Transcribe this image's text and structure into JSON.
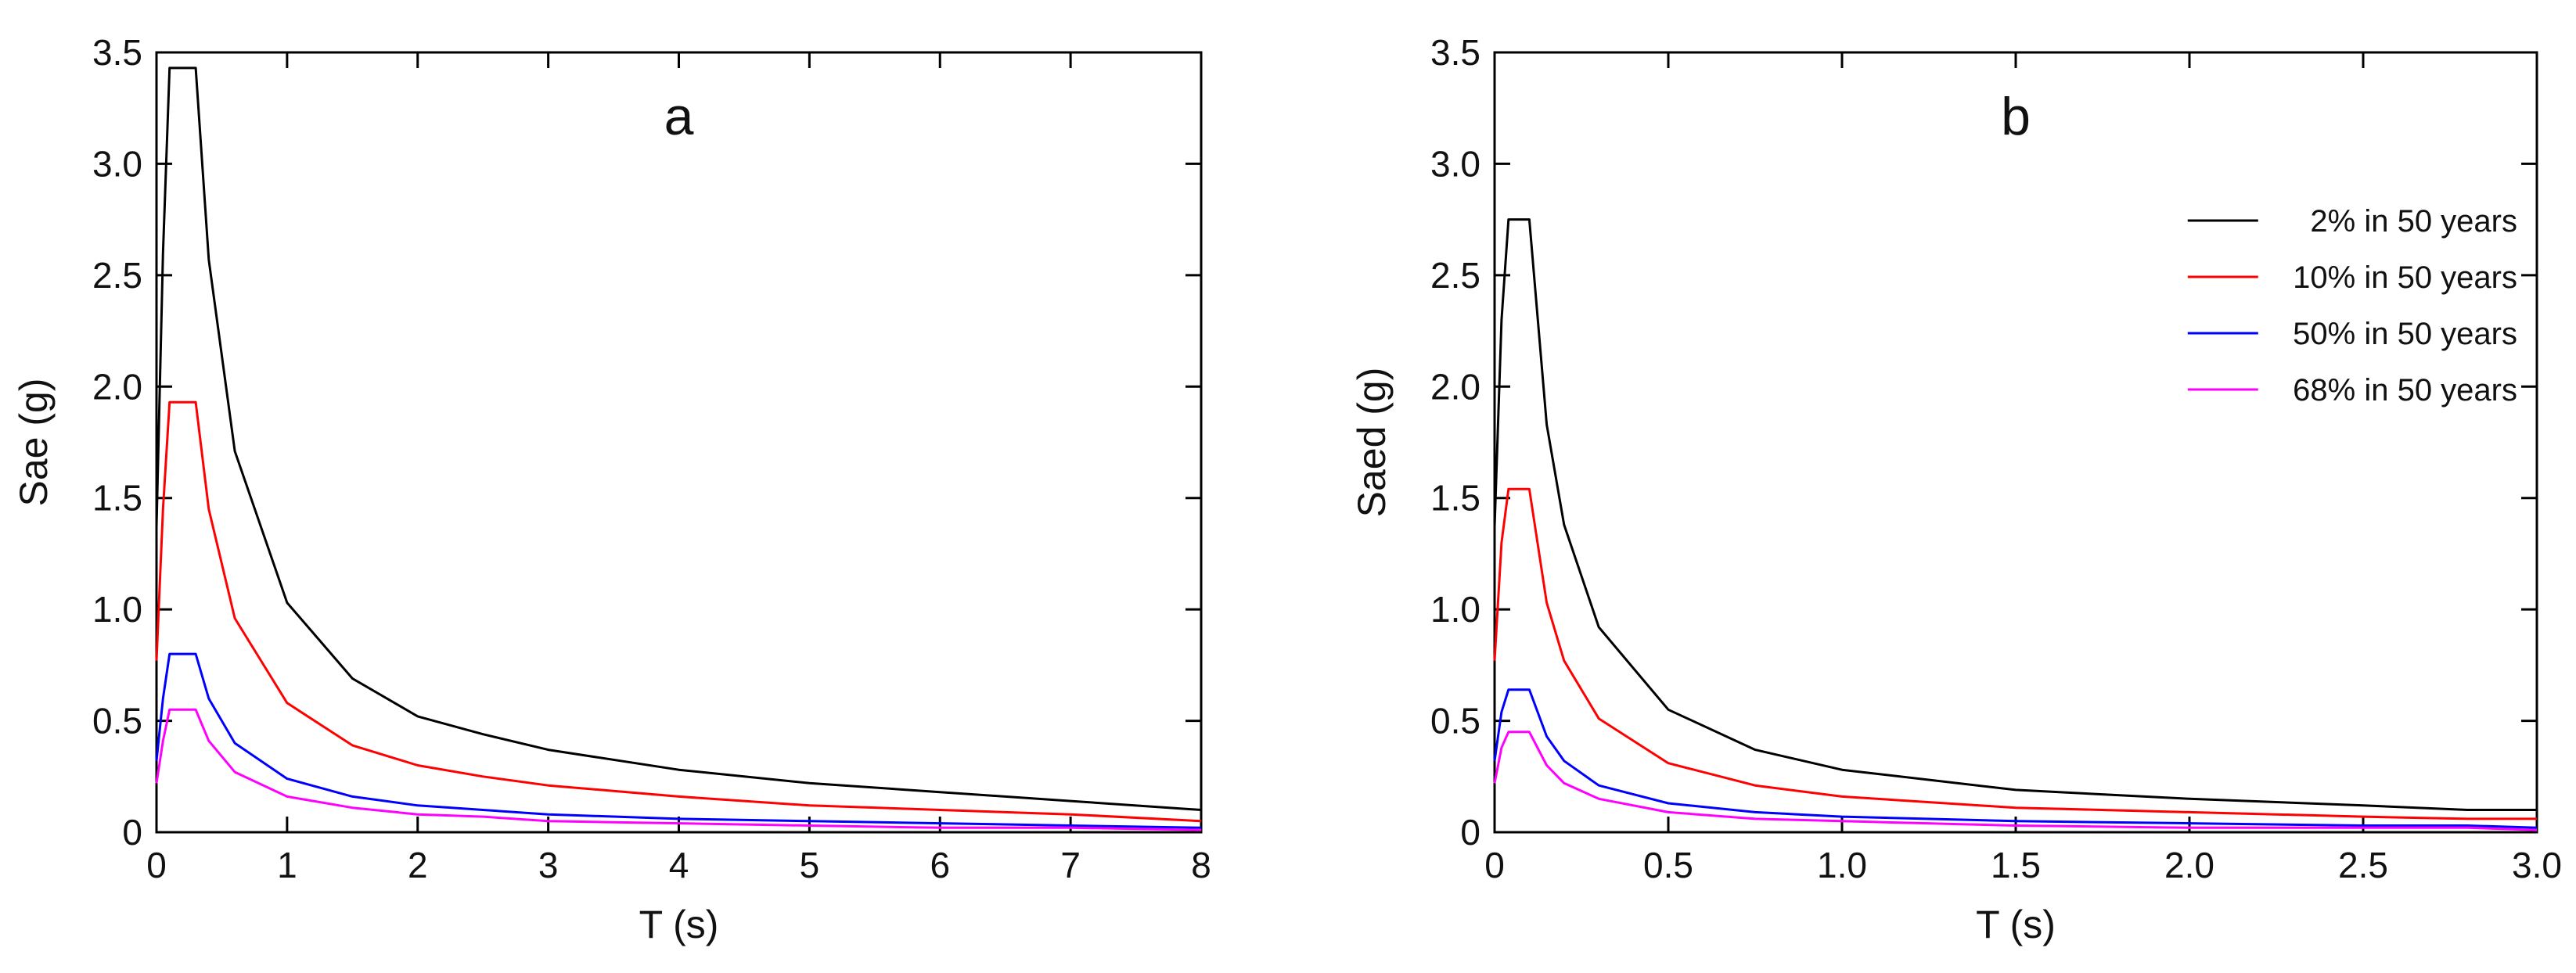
{
  "chart_data": [
    {
      "type": "line",
      "panel_label": "a",
      "xlabel": "T (s)",
      "ylabel": "Sae (g)",
      "xlim": [
        0,
        8
      ],
      "ylim": [
        0,
        3.5
      ],
      "xticks": [
        0,
        1,
        2,
        3,
        4,
        5,
        6,
        7,
        8
      ],
      "xtick_labels": [
        "0",
        "1",
        "2",
        "3",
        "4",
        "5",
        "6",
        "7",
        "8"
      ],
      "yticks": [
        0,
        0.5,
        1.0,
        1.5,
        2.0,
        2.5,
        3.0,
        3.5
      ],
      "ytick_labels": [
        "0",
        "0.5",
        "1.0",
        "1.5",
        "2.0",
        "2.5",
        "3.0",
        "3.5"
      ],
      "grid": false,
      "legend": null,
      "series": [
        {
          "color": "#000000",
          "x": [
            0,
            0.05,
            0.1,
            0.3,
            0.4,
            0.6,
            1,
            1.5,
            2,
            2.5,
            3,
            4,
            5,
            6,
            7,
            8
          ],
          "y": [
            1.37,
            2.6,
            3.43,
            3.43,
            2.57,
            1.71,
            1.03,
            0.69,
            0.52,
            0.44,
            0.37,
            0.28,
            0.22,
            0.18,
            0.14,
            0.1
          ]
        },
        {
          "color": "#ff0000",
          "x": [
            0,
            0.05,
            0.1,
            0.3,
            0.4,
            0.6,
            1,
            1.5,
            2,
            2.5,
            3,
            4,
            5,
            6,
            7,
            8
          ],
          "y": [
            0.77,
            1.45,
            1.93,
            1.93,
            1.45,
            0.96,
            0.58,
            0.39,
            0.3,
            0.25,
            0.21,
            0.16,
            0.12,
            0.1,
            0.08,
            0.05
          ]
        },
        {
          "color": "#0000ff",
          "x": [
            0,
            0.05,
            0.1,
            0.3,
            0.4,
            0.6,
            1,
            1.5,
            2,
            2.5,
            3,
            4,
            5,
            6,
            7,
            8
          ],
          "y": [
            0.32,
            0.6,
            0.8,
            0.8,
            0.6,
            0.4,
            0.24,
            0.16,
            0.12,
            0.1,
            0.08,
            0.06,
            0.05,
            0.04,
            0.03,
            0.02
          ]
        },
        {
          "color": "#ff00ff",
          "x": [
            0,
            0.05,
            0.1,
            0.3,
            0.4,
            0.6,
            1,
            1.5,
            2,
            2.5,
            3,
            4,
            5,
            6,
            7,
            8
          ],
          "y": [
            0.22,
            0.41,
            0.55,
            0.55,
            0.41,
            0.27,
            0.16,
            0.11,
            0.08,
            0.07,
            0.05,
            0.04,
            0.03,
            0.02,
            0.02,
            0.01
          ]
        }
      ]
    },
    {
      "type": "line",
      "panel_label": "b",
      "xlabel": "T (s)",
      "ylabel": "Saed (g)",
      "xlim": [
        0,
        3.0
      ],
      "ylim": [
        0,
        3.5
      ],
      "xticks": [
        0,
        0.5,
        1.0,
        1.5,
        2.0,
        2.5,
        3.0
      ],
      "xtick_labels": [
        "0",
        "0.5",
        "1.0",
        "1.5",
        "2.0",
        "2.5",
        "3.0"
      ],
      "yticks": [
        0,
        0.5,
        1.0,
        1.5,
        2.0,
        2.5,
        3.0,
        3.5
      ],
      "ytick_labels": [
        "0",
        "0.5",
        "1.0",
        "1.5",
        "2.0",
        "2.5",
        "3.0",
        "3.5"
      ],
      "grid": false,
      "legend": "top-right",
      "series": [
        {
          "name": "2% in 50 years",
          "color": "#000000",
          "x": [
            0,
            0.02,
            0.04,
            0.1,
            0.15,
            0.2,
            0.3,
            0.5,
            0.75,
            1.0,
            1.5,
            2.0,
            2.5,
            2.8,
            3.0
          ],
          "y": [
            1.37,
            2.3,
            2.75,
            2.75,
            1.83,
            1.38,
            0.92,
            0.55,
            0.37,
            0.28,
            0.19,
            0.15,
            0.12,
            0.1,
            0.1
          ]
        },
        {
          "name": "10% in 50 years",
          "color": "#ff0000",
          "x": [
            0,
            0.02,
            0.04,
            0.1,
            0.15,
            0.2,
            0.3,
            0.5,
            0.75,
            1.0,
            1.5,
            2.0,
            2.5,
            2.8,
            3.0
          ],
          "y": [
            0.77,
            1.3,
            1.54,
            1.54,
            1.03,
            0.77,
            0.51,
            0.31,
            0.21,
            0.16,
            0.11,
            0.09,
            0.07,
            0.06,
            0.06
          ]
        },
        {
          "name": "50% in 50 years",
          "color": "#0000ff",
          "x": [
            0,
            0.02,
            0.04,
            0.1,
            0.15,
            0.2,
            0.3,
            0.5,
            0.75,
            1.0,
            1.5,
            2.0,
            2.5,
            2.8,
            3.0
          ],
          "y": [
            0.32,
            0.54,
            0.64,
            0.64,
            0.43,
            0.32,
            0.21,
            0.13,
            0.09,
            0.07,
            0.05,
            0.04,
            0.03,
            0.03,
            0.02
          ]
        },
        {
          "name": "68% in 50 years",
          "color": "#ff00ff",
          "x": [
            0,
            0.02,
            0.04,
            0.1,
            0.15,
            0.2,
            0.3,
            0.5,
            0.75,
            1.0,
            1.5,
            2.0,
            2.5,
            2.8,
            3.0
          ],
          "y": [
            0.22,
            0.38,
            0.45,
            0.45,
            0.3,
            0.22,
            0.15,
            0.09,
            0.06,
            0.05,
            0.03,
            0.02,
            0.02,
            0.02,
            0.01
          ]
        }
      ]
    }
  ]
}
